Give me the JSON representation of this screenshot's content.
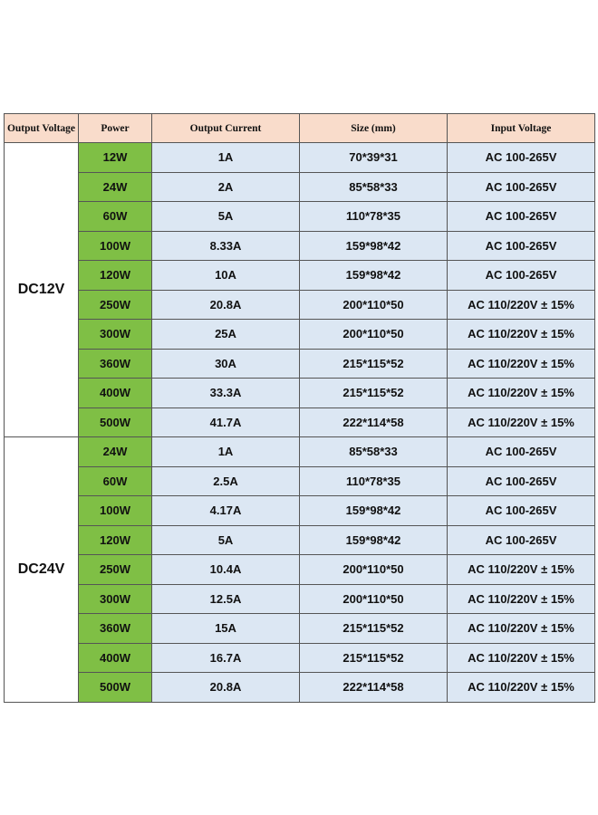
{
  "table": {
    "header": [
      "Output Voltage",
      "Power",
      "Output Current",
      "Size (mm)",
      "Input Voltage"
    ],
    "groups": [
      {
        "label": "DC12V",
        "rows": [
          [
            "12W",
            "1A",
            "70*39*31",
            "AC 100-265V"
          ],
          [
            "24W",
            "2A",
            "85*58*33",
            "AC 100-265V"
          ],
          [
            "60W",
            "5A",
            "110*78*35",
            "AC 100-265V"
          ],
          [
            "100W",
            "8.33A",
            "159*98*42",
            "AC 100-265V"
          ],
          [
            "120W",
            "10A",
            "159*98*42",
            "AC 100-265V"
          ],
          [
            "250W",
            "20.8A",
            "200*110*50",
            "AC 110/220V ± 15%"
          ],
          [
            "300W",
            "25A",
            "200*110*50",
            "AC 110/220V ± 15%"
          ],
          [
            "360W",
            "30A",
            "215*115*52",
            "AC 110/220V ± 15%"
          ],
          [
            "400W",
            "33.3A",
            "215*115*52",
            "AC 110/220V ± 15%"
          ],
          [
            "500W",
            "41.7A",
            "222*114*58",
            "AC 110/220V ± 15%"
          ]
        ]
      },
      {
        "label": "DC24V",
        "rows": [
          [
            "24W",
            "1A",
            "85*58*33",
            "AC 100-265V"
          ],
          [
            "60W",
            "2.5A",
            "110*78*35",
            "AC 100-265V"
          ],
          [
            "100W",
            "4.17A",
            "159*98*42",
            "AC 100-265V"
          ],
          [
            "120W",
            "5A",
            "159*98*42",
            "AC 100-265V"
          ],
          [
            "250W",
            "10.4A",
            "200*110*50",
            "AC 110/220V ± 15%"
          ],
          [
            "300W",
            "12.5A",
            "200*110*50",
            "AC 110/220V ± 15%"
          ],
          [
            "360W",
            "15A",
            "215*115*52",
            "AC 110/220V ± 15%"
          ],
          [
            "400W",
            "16.7A",
            "215*115*52",
            "AC 110/220V ± 15%"
          ],
          [
            "500W",
            "20.8A",
            "222*114*58",
            "AC 110/220V ± 15%"
          ]
        ]
      }
    ]
  }
}
